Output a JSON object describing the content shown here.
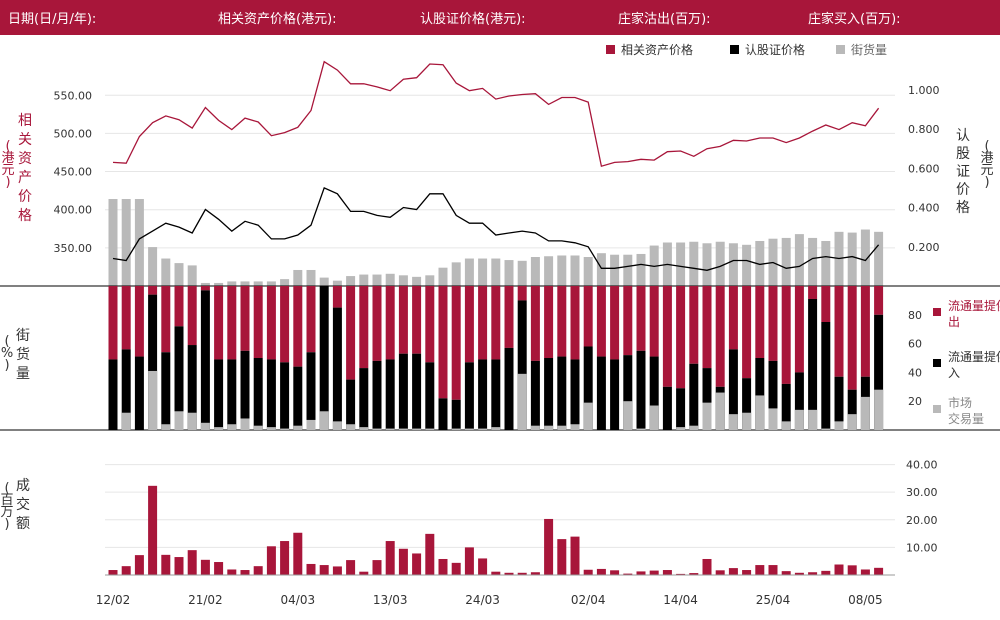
{
  "header": {
    "date": "日期(日/月/年):",
    "underlying_price": "相关资产价格(港元):",
    "warrant_price": "认股证价格(港元):",
    "dealer_out": "庄家沽出(百万):",
    "dealer_in": "庄家买入(百万):"
  },
  "colors": {
    "red": "#a8163a",
    "black": "#000000",
    "gray": "#b9b9b9",
    "header_bg": "#a8163a"
  },
  "chart_data": [
    {
      "type": "line",
      "legend": [
        "相关资产价格",
        "认股证价格",
        "街货量"
      ],
      "y_left_label": "相关资产价格",
      "y_left_unit": "(港元)",
      "y_right_label": "认股证价格",
      "y_right_unit": "(港元)",
      "y_left_ticks": [
        "550.00",
        "500.00",
        "450.00",
        "400.00",
        "350.00"
      ],
      "y_right_ticks": [
        "1.000",
        "0.800",
        "0.600",
        "0.400",
        "0.200"
      ],
      "y_left_range": [
        300,
        570
      ],
      "y_right_range": [
        0,
        1.05
      ],
      "underlying": [
        462,
        461,
        496,
        514,
        523,
        518,
        507,
        534,
        517,
        505,
        520,
        515,
        497,
        501,
        508,
        530,
        594,
        583,
        565,
        565,
        561,
        556,
        571,
        573,
        591,
        590,
        566,
        556,
        559,
        545,
        549,
        551,
        552,
        538,
        547,
        547,
        541,
        457,
        462,
        463,
        466,
        465,
        476,
        477,
        470,
        480,
        483,
        491,
        490,
        494,
        494,
        488,
        494,
        503,
        511,
        505,
        514,
        510,
        533
      ],
      "warrant": [
        0.14,
        0.13,
        0.24,
        0.28,
        0.32,
        0.3,
        0.27,
        0.39,
        0.34,
        0.28,
        0.33,
        0.31,
        0.24,
        0.24,
        0.26,
        0.31,
        0.5,
        0.47,
        0.38,
        0.38,
        0.36,
        0.35,
        0.4,
        0.39,
        0.47,
        0.47,
        0.36,
        0.32,
        0.32,
        0.26,
        0.27,
        0.28,
        0.27,
        0.23,
        0.23,
        0.22,
        0.2,
        0.09,
        0.09,
        0.1,
        0.11,
        0.1,
        0.11,
        0.1,
        0.09,
        0.08,
        0.1,
        0.13,
        0.13,
        0.11,
        0.12,
        0.09,
        0.1,
        0.14,
        0.15,
        0.14,
        0.15,
        0.13,
        0.21
      ],
      "outstanding": [
        414,
        414,
        414,
        351,
        336,
        330,
        327,
        304,
        304,
        306,
        306,
        306,
        306,
        309,
        321,
        321,
        311,
        307,
        313,
        315,
        315,
        316,
        314,
        312,
        314,
        324,
        331,
        336,
        336,
        336,
        334,
        333,
        338,
        339,
        340,
        340,
        338,
        343,
        341,
        341,
        342,
        353,
        357,
        357,
        358,
        356,
        358,
        356,
        354,
        359,
        362,
        363,
        368,
        363,
        359,
        371,
        370,
        374,
        371
      ]
    },
    {
      "type": "bar",
      "y_label": "街货量",
      "y_unit": "(%)",
      "y_ticks": [
        "80",
        "60",
        "40",
        "20"
      ],
      "y_range": [
        0,
        100
      ],
      "legend": [
        "流通量提供者沽出",
        "流通量提供者买入",
        "市场交易量"
      ],
      "bottom_black": [
        49,
        56,
        51,
        94,
        54,
        72,
        59,
        97,
        49,
        49,
        55,
        50,
        49,
        47,
        44,
        54,
        100,
        85,
        35,
        43,
        48,
        49,
        53,
        53,
        47,
        22,
        21,
        47,
        49,
        49,
        57,
        90,
        48,
        50,
        51,
        49,
        58,
        51,
        49,
        52,
        55,
        51,
        30,
        29,
        46,
        43,
        30,
        56,
        36,
        50,
        48,
        32,
        40,
        91,
        75,
        37,
        28,
        37,
        80
      ],
      "market": [
        0,
        12,
        0,
        41,
        4,
        13,
        12,
        5,
        2,
        4,
        8,
        3,
        2,
        1,
        3,
        7,
        13,
        6,
        4,
        2,
        1,
        1,
        1,
        1,
        1,
        0,
        1,
        1,
        1,
        2,
        0,
        39,
        3,
        3,
        3,
        4,
        19,
        0,
        0,
        20,
        1,
        17,
        0,
        2,
        3,
        19,
        26,
        11,
        12,
        24,
        15,
        6,
        14,
        14,
        1,
        6,
        11,
        23,
        28
      ]
    },
    {
      "type": "bar",
      "y_label": "成交额",
      "y_unit": "(百万)",
      "y_ticks": [
        "40.00",
        "30.00",
        "20.00",
        "10.00"
      ],
      "y_range": [
        0,
        46
      ],
      "turnover": [
        1.8,
        3.2,
        7.2,
        32.3,
        7.3,
        6.5,
        9,
        5.5,
        4.7,
        2,
        1.8,
        3.2,
        10.4,
        12.3,
        15.3,
        4,
        3.6,
        3.1,
        5.4,
        1.2,
        5.4,
        12.3,
        9.5,
        7.8,
        14.9,
        5.8,
        4.4,
        10,
        6,
        1.2,
        0.8,
        0.8,
        1,
        20.3,
        13,
        13.9,
        1.9,
        2.2,
        1.7,
        0.5,
        1.3,
        1.6,
        1.8,
        0.4,
        0.7,
        5.8,
        1.7,
        2.5,
        1.8,
        3.6,
        3.6,
        1.4,
        0.8,
        1,
        1.5,
        3.8,
        3.5,
        2,
        2.6
      ]
    }
  ],
  "x_axis_ticks": [
    {
      "label": "12/02",
      "index": 0
    },
    {
      "label": "21/02",
      "index": 7
    },
    {
      "label": "04/03",
      "index": 14
    },
    {
      "label": "13/03",
      "index": 21
    },
    {
      "label": "24/03",
      "index": 28
    },
    {
      "label": "02/04",
      "index": 36
    },
    {
      "label": "14/04",
      "index": 43
    },
    {
      "label": "25/04",
      "index": 50
    },
    {
      "label": "08/05",
      "index": 57
    }
  ]
}
